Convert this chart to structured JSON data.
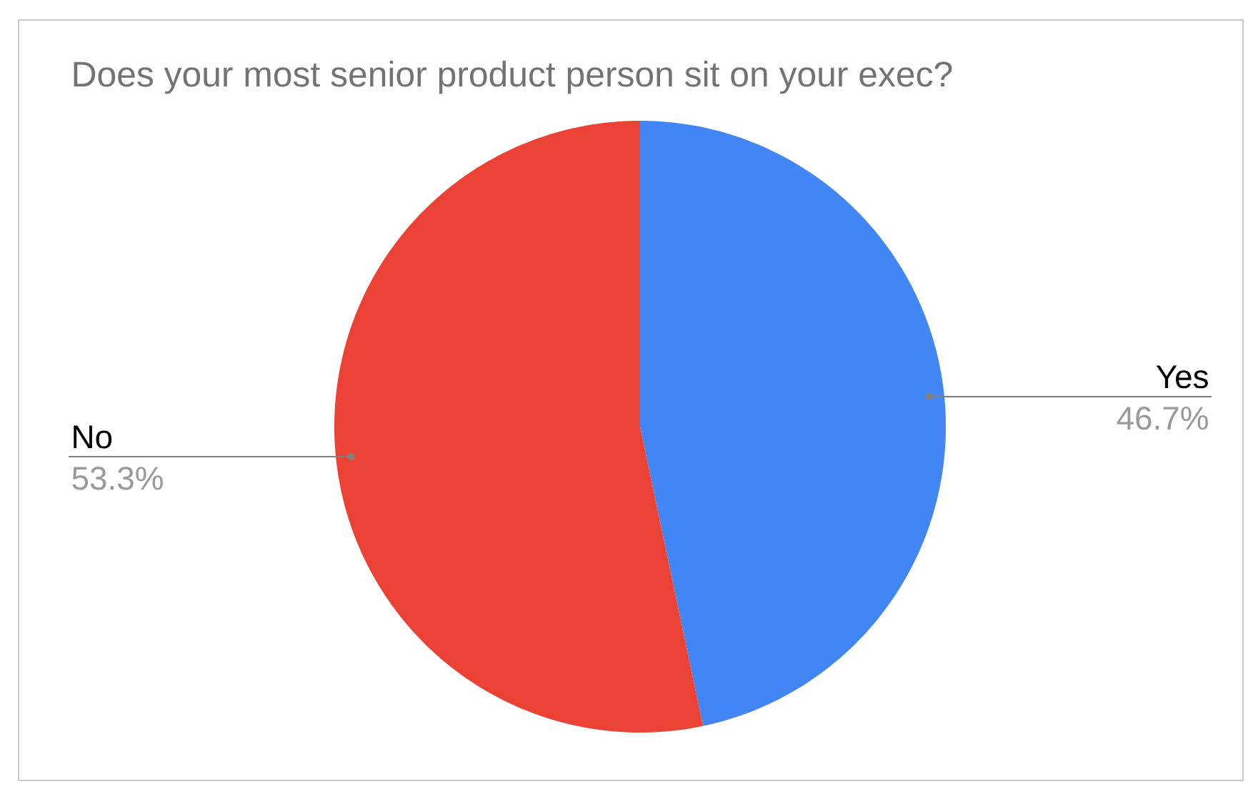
{
  "chart_data": {
    "type": "pie",
    "title": "Does your most senior product person sit on your exec?",
    "categories": [
      "Yes",
      "No"
    ],
    "values": [
      46.7,
      53.3
    ],
    "value_labels": [
      "46.7%",
      "53.3%"
    ],
    "colors": [
      "#4285f4",
      "#ea4335"
    ]
  }
}
